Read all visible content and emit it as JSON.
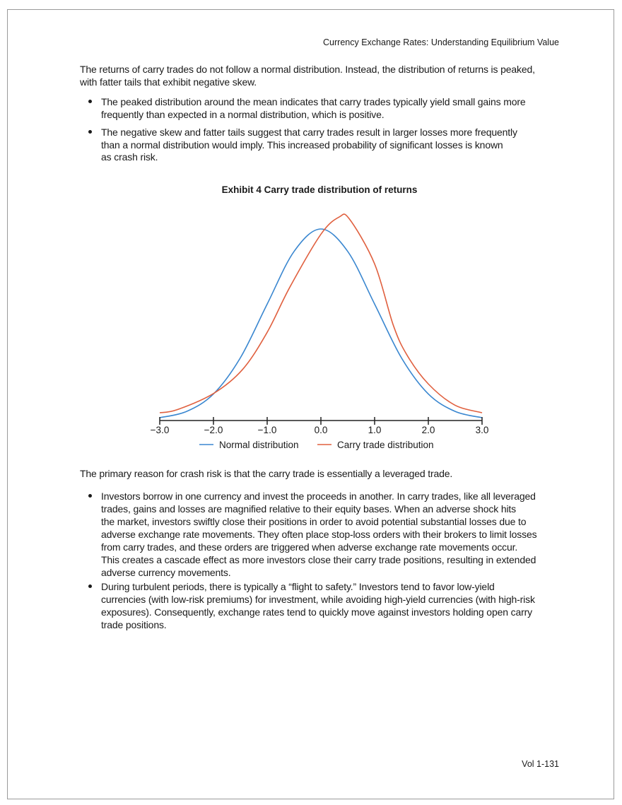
{
  "header": {
    "running_title": "Currency Exchange Rates: Understanding Equilibrium Value"
  },
  "intro": {
    "lines": [
      "The returns of carry trades do not follow a normal distribution. Instead, the distribution of returns is peaked,",
      "with fatter tails that exhibit negative skew."
    ],
    "bullets": [
      [
        "The peaked distribution around the mean indicates that carry trades typically yield small gains more",
        "frequently than expected in a normal distribution, which is positive."
      ],
      [
        "The negative skew and fatter tails suggest that carry trades result in larger losses more frequently",
        "than a normal distribution would imply. This increased probability of significant losses is known",
        "as crash risk."
      ]
    ]
  },
  "chart_data": {
    "type": "line",
    "title": "Exhibit 4  Carry trade distribution of returns",
    "xlabel": "",
    "ylabel": "",
    "xlim": [
      -3.0,
      3.0
    ],
    "x_ticks": [
      "−3.0",
      "−2.0",
      "−1.0",
      "0.0",
      "1.0",
      "2.0",
      "3.0"
    ],
    "y_axis_visible": false,
    "grid": false,
    "legend_position": "bottom",
    "series": [
      {
        "name": "Normal distribution",
        "color": "#3a87d0",
        "x": [
          -3,
          -2.5,
          -2,
          -1.5,
          -1,
          -0.5,
          0,
          0.5,
          1,
          1.5,
          2,
          2.5,
          3
        ],
        "y": [
          0.0044,
          0.0175,
          0.054,
          0.1295,
          0.242,
          0.352,
          0.399,
          0.352,
          0.242,
          0.1295,
          0.054,
          0.0175,
          0.0044
        ]
      },
      {
        "name": "Carry trade distribution",
        "color": "#e0603f",
        "x": [
          -3,
          -2.68,
          -2,
          -1.46,
          -1,
          -0.58,
          0,
          0.34,
          0.53,
          1,
          1.35,
          1.61,
          2,
          2.49,
          3
        ],
        "y": [
          0.0148,
          0.021,
          0.055,
          0.105,
          0.183,
          0.277,
          0.388,
          0.424,
          0.42,
          0.326,
          0.197,
          0.134,
          0.075,
          0.031,
          0.0148
        ]
      }
    ]
  },
  "body": {
    "lead": "The primary reason for crash risk is that the carry trade is essentially a leveraged trade.",
    "bullets": [
      [
        "Investors borrow in one currency and invest the proceeds in another. In carry trades, like all leveraged",
        "trades, gains and losses are magnified relative to their equity bases. When an adverse shock hits",
        "the market, investors swiftly close their positions in order to avoid potential substantial losses due to",
        "adverse exchange rate movements. They often place stop-loss orders with their brokers to limit losses",
        "from carry trades, and these orders are triggered when adverse exchange rate movements occur.",
        "This creates a cascade effect as more investors close their carry trade positions, resulting in extended",
        "adverse currency movements."
      ],
      [
        "During turbulent periods, there is typically a “flight to safety.” Investors tend to favor low-yield",
        "currencies (with low-risk premiums) for investment, while avoiding high-yield currencies (with high-risk",
        "exposures). Consequently, exchange rates tend to quickly move against investors holding open carry",
        "trade positions."
      ]
    ]
  },
  "footer": {
    "page_number": "Vol 1-131"
  }
}
